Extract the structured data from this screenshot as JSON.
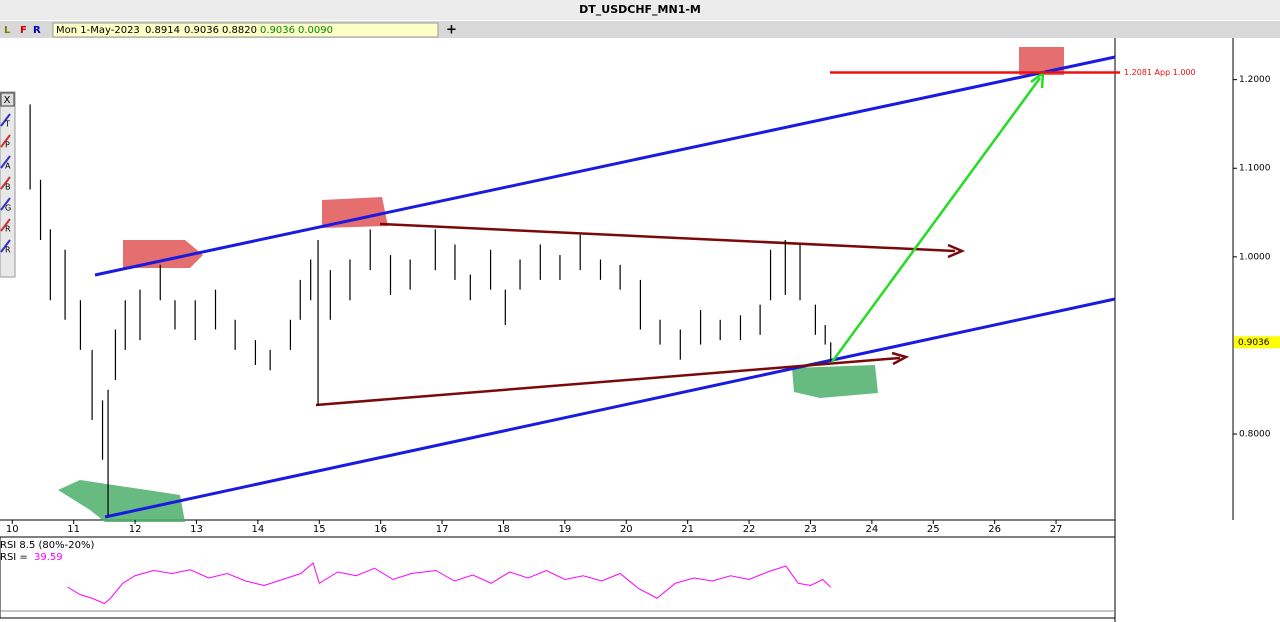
{
  "window": {
    "title": "DT_USDCHF_MN1-M"
  },
  "toolbar": {
    "buttons": [
      "L",
      "F",
      "R"
    ],
    "info": [
      "Mon 1-May-2023",
      "0.8914",
      "0.9036",
      "0.8820",
      "0.9036",
      "0.0090"
    ],
    "add": "+"
  },
  "tools": {
    "close": "X",
    "letters": [
      "T",
      "P",
      "A",
      "B",
      "G",
      "R",
      "R"
    ]
  },
  "chart_data": {
    "type": "ohlc",
    "x": [
      10.29,
      10.46,
      10.62,
      10.86,
      11.11,
      11.3,
      11.47,
      11.56,
      11.68,
      11.84,
      12.08,
      12.41,
      12.65,
      12.98,
      13.31,
      13.63,
      13.96,
      14.2,
      14.53,
      14.69,
      14.86,
      14.98,
      15.18,
      15.5,
      15.83,
      16.16,
      16.48,
      16.89,
      17.21,
      17.46,
      17.79,
      18.03,
      18.27,
      18.6,
      18.92,
      19.25,
      19.58,
      19.9,
      20.23,
      20.55,
      20.88,
      21.21,
      21.53,
      21.86,
      22.18,
      22.35,
      22.59,
      22.83,
      23.08,
      23.24,
      23.33
    ],
    "high": [
      1.172,
      1.087,
      1.031,
      1.008,
      0.951,
      0.895,
      0.838,
      0.85,
      0.918,
      0.951,
      0.963,
      0.991,
      0.951,
      0.951,
      0.963,
      0.929,
      0.906,
      0.895,
      0.929,
      0.974,
      0.997,
      1.019,
      0.985,
      0.997,
      1.031,
      1.002,
      0.997,
      1.031,
      1.014,
      0.98,
      1.008,
      0.963,
      0.997,
      1.014,
      1.002,
      1.025,
      0.997,
      0.991,
      0.974,
      0.929,
      0.918,
      0.94,
      0.929,
      0.934,
      0.946,
      1.008,
      1.019,
      1.014,
      0.946,
      0.923,
      0.9036
    ],
    "low": [
      1.076,
      1.019,
      0.951,
      0.929,
      0.895,
      0.816,
      0.771,
      0.708,
      0.861,
      0.895,
      0.906,
      0.951,
      0.918,
      0.906,
      0.918,
      0.895,
      0.878,
      0.872,
      0.895,
      0.929,
      0.951,
      0.833,
      0.929,
      0.951,
      0.985,
      0.957,
      0.963,
      0.985,
      0.974,
      0.951,
      0.963,
      0.923,
      0.963,
      0.974,
      0.974,
      0.985,
      0.974,
      0.963,
      0.918,
      0.901,
      0.884,
      0.901,
      0.906,
      0.906,
      0.912,
      0.951,
      0.957,
      0.951,
      0.912,
      0.901,
      0.882
    ],
    "xlim": [
      9.8,
      27.96
    ],
    "xticks": [
      10,
      11,
      12,
      13,
      14,
      15,
      16,
      17,
      18,
      19,
      20,
      21,
      22,
      23,
      24,
      25,
      26,
      27
    ],
    "ylim": [
      0.703,
      1.247
    ],
    "yticks": [
      {
        "value": 0.8,
        "label": "0.8000"
      },
      {
        "value": 1.0,
        "label": "1.0000"
      },
      {
        "value": 1.1,
        "label": "1.1000"
      },
      {
        "value": 1.2,
        "label": "1.2000"
      }
    ],
    "last_price": 0.9036,
    "target": {
      "value": 1.2081,
      "label": "1.2081 App 1.000"
    },
    "color": "#000000",
    "rsi": {
      "title": "RSI 8.5 (80%-20%)",
      "label": "RSI =",
      "current": 39.59,
      "color": "#ff00ff",
      "x": [
        10.9,
        11.1,
        11.3,
        11.5,
        11.6,
        11.8,
        12.0,
        12.3,
        12.6,
        12.9,
        13.2,
        13.5,
        13.8,
        14.1,
        14.4,
        14.7,
        14.9,
        15.0,
        15.3,
        15.6,
        15.9,
        16.2,
        16.5,
        16.9,
        17.2,
        17.5,
        17.8,
        18.1,
        18.4,
        18.7,
        19.0,
        19.3,
        19.6,
        19.9,
        20.2,
        20.5,
        20.8,
        21.1,
        21.4,
        21.7,
        22.0,
        22.3,
        22.6,
        22.8,
        23.0,
        23.2,
        23.33
      ],
      "values": [
        40,
        30,
        25,
        18,
        25,
        45,
        55,
        62,
        58,
        63,
        52,
        58,
        48,
        42,
        50,
        58,
        72,
        45,
        60,
        55,
        65,
        50,
        58,
        62,
        48,
        56,
        45,
        60,
        52,
        62,
        50,
        55,
        48,
        58,
        38,
        25,
        45,
        52,
        48,
        55,
        50,
        60,
        68,
        45,
        42,
        50,
        39.59
      ],
      "ylim": [
        0,
        100
      ]
    }
  }
}
